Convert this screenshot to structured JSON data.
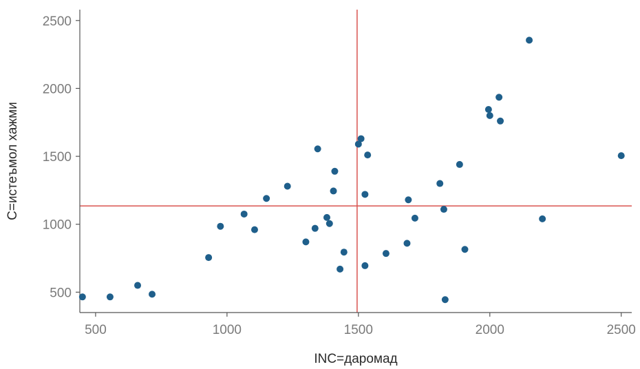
{
  "chart_data": {
    "type": "scatter",
    "xlabel": "INC=даромад",
    "ylabel": "C=истеъмол хажми",
    "xlim": [
      440,
      2540
    ],
    "ylim": [
      350,
      2580
    ],
    "xticks": [
      500,
      1000,
      1500,
      2000,
      2500
    ],
    "yticks": [
      500,
      1000,
      1500,
      2000,
      2500
    ],
    "grid": false,
    "marker_color": "#1f5f8b",
    "reference_line_color": "#d9534f",
    "reference_lines": {
      "x": 1495,
      "y": 1135
    },
    "series": [
      {
        "points": [
          {
            "x": 450,
            "y": 465
          },
          {
            "x": 555,
            "y": 465
          },
          {
            "x": 660,
            "y": 550
          },
          {
            "x": 715,
            "y": 485
          },
          {
            "x": 930,
            "y": 755
          },
          {
            "x": 975,
            "y": 985
          },
          {
            "x": 1065,
            "y": 1075
          },
          {
            "x": 1105,
            "y": 960
          },
          {
            "x": 1150,
            "y": 1190
          },
          {
            "x": 1230,
            "y": 1280
          },
          {
            "x": 1300,
            "y": 870
          },
          {
            "x": 1335,
            "y": 970
          },
          {
            "x": 1345,
            "y": 1555
          },
          {
            "x": 1380,
            "y": 1050
          },
          {
            "x": 1390,
            "y": 1005
          },
          {
            "x": 1405,
            "y": 1245
          },
          {
            "x": 1410,
            "y": 1390
          },
          {
            "x": 1430,
            "y": 670
          },
          {
            "x": 1445,
            "y": 795
          },
          {
            "x": 1500,
            "y": 1590
          },
          {
            "x": 1510,
            "y": 1630
          },
          {
            "x": 1525,
            "y": 695
          },
          {
            "x": 1525,
            "y": 1220
          },
          {
            "x": 1535,
            "y": 1510
          },
          {
            "x": 1605,
            "y": 785
          },
          {
            "x": 1685,
            "y": 860
          },
          {
            "x": 1690,
            "y": 1180
          },
          {
            "x": 1715,
            "y": 1045
          },
          {
            "x": 1810,
            "y": 1300
          },
          {
            "x": 1825,
            "y": 1110
          },
          {
            "x": 1830,
            "y": 445
          },
          {
            "x": 1885,
            "y": 1440
          },
          {
            "x": 1905,
            "y": 815
          },
          {
            "x": 1995,
            "y": 1845
          },
          {
            "x": 2000,
            "y": 1800
          },
          {
            "x": 2035,
            "y": 1935
          },
          {
            "x": 2040,
            "y": 1760
          },
          {
            "x": 2150,
            "y": 2355
          },
          {
            "x": 2200,
            "y": 1040
          },
          {
            "x": 2500,
            "y": 1505
          }
        ]
      }
    ]
  }
}
